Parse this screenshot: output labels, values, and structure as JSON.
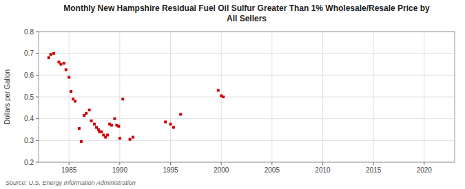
{
  "chart_data": {
    "type": "scatter",
    "title": "Monthly New Hampshire Residual Fuel Oil Sulfur Greater Than 1% Wholesale/Resale Price by\nAll Sellers",
    "ylabel": "Dollars per Gallon",
    "source": "Source: U.S. Energy Information Administration",
    "color": "#cc0000",
    "marker": "square",
    "grid": true,
    "xlim": [
      1982,
      2023
    ],
    "ylim": [
      0.2,
      0.8
    ],
    "xticks": [
      1985,
      1990,
      1995,
      2000,
      2005,
      2010,
      2015,
      2020
    ],
    "yticks": [
      0.2,
      0.3,
      0.4,
      0.5,
      0.6,
      0.7,
      0.8
    ],
    "x": [
      1983.0,
      1983.2,
      1983.5,
      1984.0,
      1984.2,
      1984.5,
      1984.7,
      1985.0,
      1985.2,
      1985.4,
      1985.6,
      1986.0,
      1986.2,
      1986.5,
      1986.7,
      1987.0,
      1987.2,
      1987.5,
      1987.7,
      1987.9,
      1988.0,
      1988.2,
      1988.4,
      1988.6,
      1988.8,
      1989.0,
      1989.2,
      1989.5,
      1989.7,
      1989.9,
      1990.0,
      1990.3,
      1991.0,
      1991.3,
      1994.5,
      1995.0,
      1995.3,
      1996.0,
      1999.7,
      2000.0,
      2000.2
    ],
    "values": [
      0.68,
      0.695,
      0.7,
      0.66,
      0.65,
      0.655,
      0.625,
      0.59,
      0.525,
      0.49,
      0.48,
      0.355,
      0.295,
      0.415,
      0.425,
      0.44,
      0.39,
      0.375,
      0.36,
      0.35,
      0.34,
      0.34,
      0.325,
      0.315,
      0.325,
      0.375,
      0.37,
      0.4,
      0.37,
      0.365,
      0.31,
      0.49,
      0.305,
      0.315,
      0.385,
      0.375,
      0.36,
      0.42,
      0.53,
      0.505,
      0.5
    ]
  }
}
